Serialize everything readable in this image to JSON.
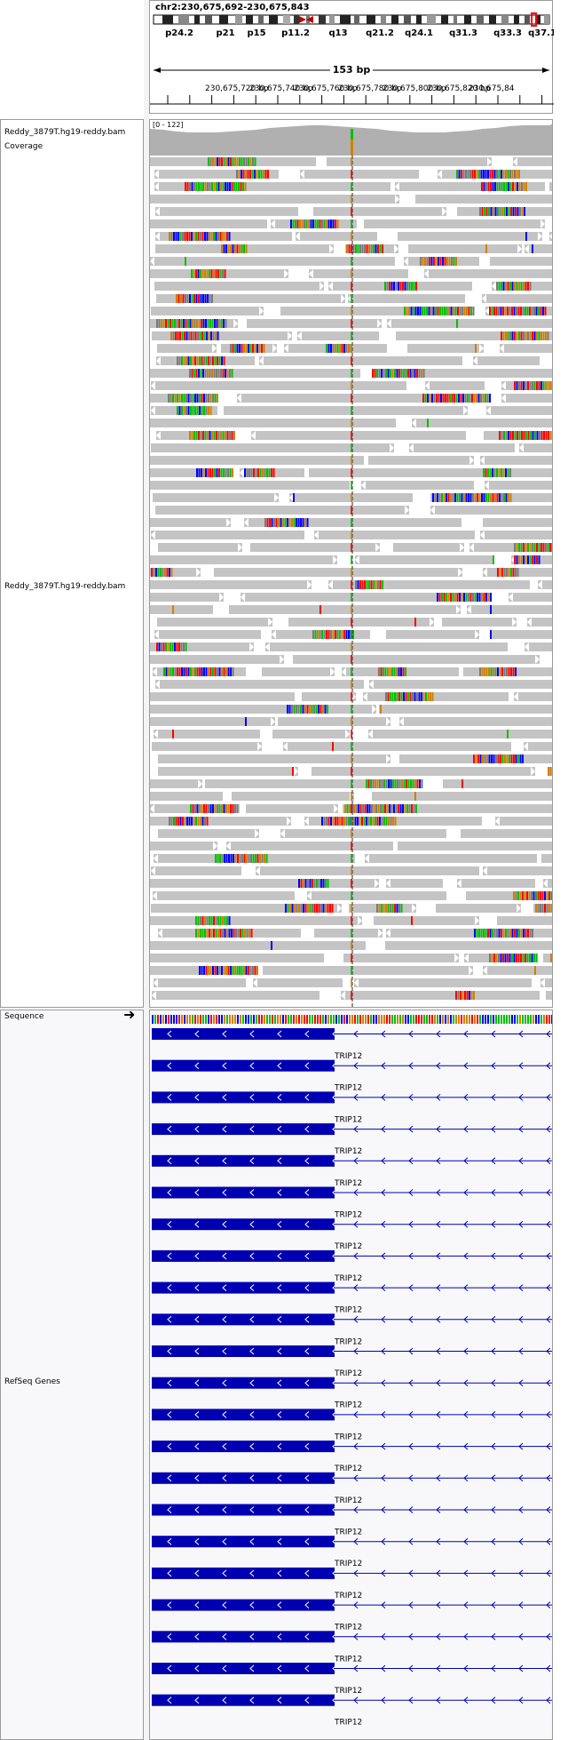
{
  "header": {
    "locus": "chr2:230,675,692-230,675,843",
    "span": "153 bp"
  },
  "ideogram": {
    "bands": [
      "p24.2",
      "p21",
      "p15",
      "p11.2",
      "q13",
      "q21.2",
      "q24.1",
      "q31.3",
      "q33.3",
      "q37.1"
    ]
  },
  "ruler": {
    "ticks": [
      "230,675,720 bp",
      "230,675,740 bp",
      "230,675,760 bp",
      "230,675,780 bp",
      "230,675,800 bp",
      "230,675,820 bp",
      "230,675,84"
    ]
  },
  "tracks": {
    "coverage_name": "Reddy_3879T.hg19-reddy.bam Coverage",
    "coverage_range": "[0 - 122]",
    "reads_name": "Reddy_3879T.hg19-reddy.bam",
    "sequence_name": "Sequence",
    "genes_name": "RefSeq Genes"
  },
  "genes": {
    "label": "TRIP12"
  },
  "colors": {
    "read": "#c4c4c4",
    "gene": "#0000b2",
    "mismatch_a": "#00c000",
    "mismatch_c": "#0000ff",
    "mismatch_g": "#d18000",
    "mismatch_t": "#ff0000",
    "chrom_mark": "#ff0000"
  }
}
